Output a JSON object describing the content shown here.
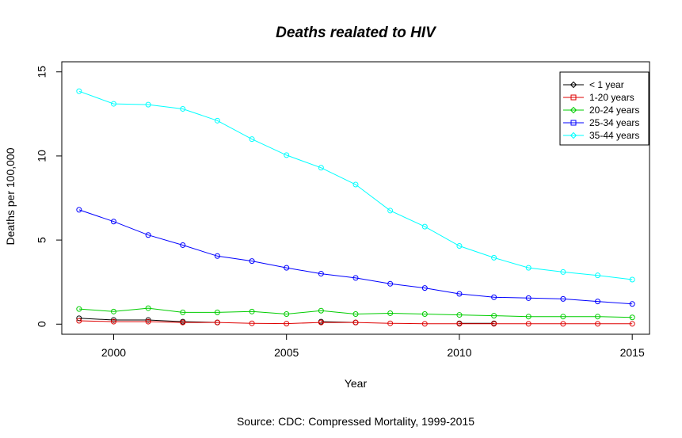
{
  "chart_data": {
    "type": "line",
    "title": "Deaths realated to HIV",
    "xlabel": "Year",
    "ylabel": "Deaths per 100,000",
    "subtitle": "Source: CDC: Compressed Mortality, 1999-2015",
    "xlim": [
      1998.5,
      2015.5
    ],
    "ylim": [
      -0.6,
      15.6
    ],
    "x_ticks": [
      2000,
      2005,
      2010,
      2015
    ],
    "y_ticks": [
      0,
      5,
      10,
      15
    ],
    "grid": false,
    "legend_position": "top-right",
    "x": [
      1999,
      2000,
      2001,
      2002,
      2003,
      2004,
      2005,
      2006,
      2007,
      2008,
      2009,
      2010,
      2011,
      2012,
      2013,
      2014,
      2015
    ],
    "series": [
      {
        "name": "< 1 year",
        "color": "#000000",
        "marker": "diamond",
        "values": [
          0.35,
          0.25,
          0.25,
          0.15,
          0.1,
          null,
          null,
          0.15,
          0.1,
          null,
          null,
          0.05,
          0.05,
          null,
          null,
          null,
          null
        ]
      },
      {
        "name": "1-20 years",
        "color": "#DF0000",
        "marker": "square",
        "values": [
          0.2,
          0.15,
          0.15,
          0.1,
          0.1,
          0.05,
          0.03,
          0.1,
          0.1,
          0.05,
          0.02,
          0.02,
          0.02,
          0.02,
          0.02,
          0.02,
          0.02
        ]
      },
      {
        "name": "20-24 years",
        "color": "#00CD00",
        "marker": "diamond",
        "values": [
          0.9,
          0.75,
          0.95,
          0.7,
          0.7,
          0.75,
          0.6,
          0.8,
          0.6,
          0.65,
          0.6,
          0.55,
          0.5,
          0.45,
          0.45,
          0.45,
          0.4
        ]
      },
      {
        "name": "25-34 years",
        "color": "#0000FF",
        "marker": "square",
        "values": [
          6.8,
          6.1,
          5.3,
          4.7,
          4.05,
          3.75,
          3.35,
          3.0,
          2.75,
          2.4,
          2.15,
          1.8,
          1.6,
          1.55,
          1.5,
          1.35,
          1.2
        ]
      },
      {
        "name": "35-44 years",
        "color": "#00FFFF",
        "marker": "diamond",
        "values": [
          13.85,
          13.1,
          13.05,
          12.8,
          12.1,
          11.0,
          10.05,
          9.3,
          8.3,
          6.75,
          5.8,
          4.65,
          3.95,
          3.35,
          3.1,
          2.9,
          2.65
        ]
      }
    ]
  }
}
